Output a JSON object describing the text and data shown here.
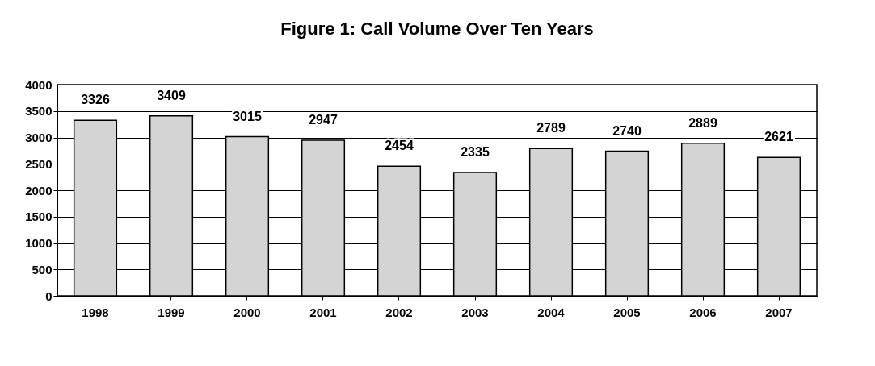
{
  "chart_data": {
    "type": "bar",
    "title": "Figure 1: Call Volume Over Ten Years",
    "categories": [
      "1998",
      "1999",
      "2000",
      "2001",
      "2002",
      "2003",
      "2004",
      "2005",
      "2006",
      "2007"
    ],
    "values": [
      3326,
      3409,
      3015,
      2947,
      2454,
      2335,
      2789,
      2740,
      2889,
      2621
    ],
    "color": "#d4d4d4",
    "ylim": [
      0,
      4000
    ],
    "yticks": [
      0,
      500,
      1000,
      1500,
      2000,
      2500,
      3000,
      3500,
      4000
    ],
    "grid": "y",
    "data_labels": true
  }
}
